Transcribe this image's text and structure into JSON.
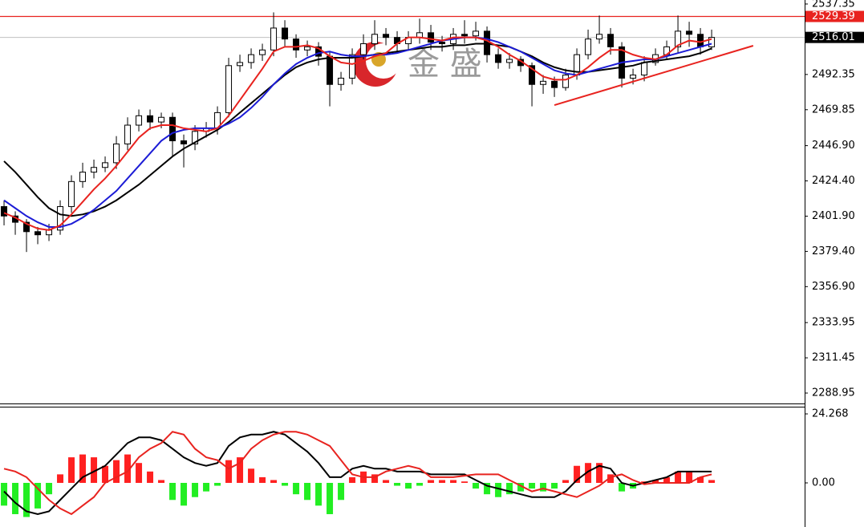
{
  "chart_data": [
    {
      "type": "candlestick",
      "xlim": [
        -0.36,
        71.28
      ],
      "ylim": [
        2282.3,
        2539.9
      ],
      "yticks": [
        {
          "value": 2537.35,
          "label": "2537.35"
        },
        {
          "value": 2492.35,
          "label": "2492.35"
        },
        {
          "value": 2469.85,
          "label": "2469.85"
        },
        {
          "value": 2446.9,
          "label": "2446.90"
        },
        {
          "value": 2424.4,
          "label": "2424.40"
        },
        {
          "value": 2401.9,
          "label": "2401.90"
        },
        {
          "value": 2379.4,
          "label": "2379.40"
        },
        {
          "value": 2356.9,
          "label": "2356.90"
        },
        {
          "value": 2333.95,
          "label": "2333.95"
        },
        {
          "value": 2311.45,
          "label": "2311.45"
        },
        {
          "value": 2288.95,
          "label": "2288.95"
        }
      ],
      "open": [
        2408,
        2402,
        2398,
        2392,
        2390,
        2393,
        2408,
        2424,
        2430,
        2433,
        2436,
        2448,
        2460,
        2466,
        2462,
        2465,
        2450,
        2448,
        2456,
        2458,
        2468,
        2498,
        2500,
        2505,
        2508,
        2522,
        2515,
        2508,
        2510,
        2504,
        2486,
        2490,
        2505,
        2512,
        2518,
        2516,
        2512,
        2516,
        2519,
        2513,
        2512,
        2518,
        2517,
        2520,
        2505,
        2500,
        2502,
        2498,
        2486,
        2488,
        2484,
        2492,
        2505,
        2515,
        2518,
        2510,
        2490,
        2492,
        2500,
        2505,
        2510,
        2520,
        2518,
        2510
      ],
      "high": [
        2412,
        2405,
        2400,
        2395,
        2397,
        2412,
        2428,
        2436,
        2438,
        2440,
        2453,
        2465,
        2470,
        2470,
        2468,
        2468,
        2454,
        2460,
        2462,
        2472,
        2503,
        2505,
        2509,
        2512,
        2532,
        2527,
        2518,
        2514,
        2513,
        2507,
        2494,
        2509,
        2518,
        2527,
        2522,
        2520,
        2520,
        2528,
        2524,
        2517,
        2522,
        2527,
        2526,
        2523,
        2509,
        2506,
        2504,
        2500,
        2492,
        2491,
        2496,
        2509,
        2521,
        2530,
        2522,
        2513,
        2496,
        2504,
        2509,
        2514,
        2530,
        2526,
        2522,
        2521
      ],
      "low": [
        2396,
        2390,
        2379,
        2384,
        2386,
        2390,
        2404,
        2420,
        2426,
        2430,
        2432,
        2444,
        2456,
        2457,
        2458,
        2440,
        2433,
        2444,
        2452,
        2454,
        2465,
        2494,
        2496,
        2501,
        2504,
        2510,
        2503,
        2504,
        2498,
        2472,
        2482,
        2486,
        2502,
        2508,
        2511,
        2506,
        2508,
        2512,
        2508,
        2507,
        2508,
        2512,
        2514,
        2500,
        2496,
        2496,
        2494,
        2472,
        2480,
        2478,
        2482,
        2489,
        2502,
        2512,
        2505,
        2484,
        2486,
        2488,
        2498,
        2502,
        2506,
        2510,
        2505,
        2508
      ],
      "close": [
        2402,
        2398,
        2392,
        2390,
        2393,
        2408,
        2424,
        2430,
        2433,
        2436,
        2448,
        2460,
        2466,
        2462,
        2465,
        2450,
        2448,
        2456,
        2458,
        2468,
        2498,
        2500,
        2505,
        2508,
        2522,
        2515,
        2508,
        2510,
        2504,
        2486,
        2490,
        2505,
        2512,
        2518,
        2516,
        2512,
        2516,
        2519,
        2513,
        2512,
        2518,
        2517,
        2520,
        2505,
        2500,
        2502,
        2498,
        2486,
        2488,
        2484,
        2492,
        2505,
        2515,
        2518,
        2510,
        2490,
        2492,
        2500,
        2505,
        2510,
        2520,
        2518,
        2510,
        2516.01
      ],
      "ma": [
        {
          "color": "#000000",
          "values": [
            2437,
            2430,
            2422,
            2414,
            2407,
            2403,
            2402,
            2403,
            2405,
            2408,
            2412,
            2417,
            2422,
            2428,
            2434,
            2440,
            2445,
            2449,
            2453,
            2457,
            2462,
            2468,
            2474,
            2480,
            2486,
            2492,
            2497,
            2500,
            2502,
            2503,
            2503,
            2503,
            2504,
            2505,
            2506,
            2507,
            2508,
            2509,
            2510,
            2510,
            2511,
            2511,
            2512,
            2512,
            2511,
            2510,
            2507,
            2504,
            2500,
            2497,
            2495,
            2494,
            2494,
            2495,
            2496,
            2497,
            2498,
            2500,
            2501,
            2502,
            2503,
            2504,
            2506,
            2509
          ]
        },
        {
          "color": "#1c1cd6",
          "values": [
            2412,
            2407,
            2402,
            2398,
            2395,
            2395,
            2397,
            2401,
            2406,
            2412,
            2418,
            2426,
            2434,
            2442,
            2450,
            2455,
            2457,
            2458,
            2458,
            2458,
            2461,
            2465,
            2471,
            2478,
            2486,
            2493,
            2499,
            2503,
            2506,
            2507,
            2505,
            2504,
            2504,
            2505,
            2505,
            2506,
            2508,
            2510,
            2512,
            2514,
            2515,
            2516,
            2516,
            2515,
            2513,
            2510,
            2507,
            2503,
            2499,
            2495,
            2493,
            2492,
            2494,
            2496,
            2498,
            2500,
            2501,
            2502,
            2502,
            2504,
            2506,
            2508,
            2510,
            2512
          ]
        },
        {
          "color": "#e8231f",
          "values": [
            2404,
            2401,
            2397,
            2394,
            2393,
            2396,
            2403,
            2411,
            2419,
            2426,
            2434,
            2443,
            2452,
            2458,
            2460,
            2460,
            2458,
            2457,
            2456,
            2458,
            2466,
            2476,
            2486,
            2496,
            2507,
            2510,
            2510,
            2511,
            2509,
            2504,
            2500,
            2499,
            2501,
            2504,
            2506,
            2512,
            2516,
            2516,
            2515,
            2514,
            2516,
            2516,
            2516,
            2514,
            2510,
            2505,
            2501,
            2496,
            2491,
            2489,
            2489,
            2492,
            2497,
            2503,
            2508,
            2508,
            2505,
            2503,
            2502,
            2505,
            2511,
            2514,
            2513,
            2515
          ]
        }
      ],
      "hline": {
        "value": 2529.39,
        "color": "#e8231f"
      },
      "trendline": {
        "x": [
          49,
          66.7
        ],
        "y": [
          2472.8,
          2510.7
        ],
        "color": "#e8231f"
      },
      "watermark": "金 盛"
    },
    {
      "type": "macd",
      "ylim": [
        -15.52,
        26.81
      ],
      "yticks": [
        24.268,
        {
          "value": 0,
          "label": "0.00"
        }
      ],
      "up_color": "#ff2020",
      "down_color": "#22ee22",
      "histogram": [
        -8,
        -11,
        -12,
        -9,
        -4,
        3,
        9,
        10,
        9,
        6,
        8,
        10,
        7,
        4,
        1,
        -6,
        -8,
        -5,
        -3,
        -1,
        8,
        9,
        5,
        2,
        1,
        -1,
        -4,
        -6,
        -8,
        -11,
        -6,
        2,
        4,
        3,
        1,
        -1,
        -2,
        -1,
        1,
        1,
        1,
        0.5,
        -2,
        -4,
        -5,
        -4,
        -3,
        -2,
        -3,
        -2,
        1,
        6,
        7,
        7,
        3,
        -3,
        -2,
        0.5,
        1,
        2,
        4,
        4,
        2,
        1
      ],
      "lines": [
        {
          "color": "#000000",
          "values": [
            -3,
            -7,
            -10,
            -11,
            -10,
            -6,
            -2,
            2,
            4,
            6,
            10,
            14,
            16,
            16,
            15,
            12,
            9,
            7,
            6,
            7,
            13,
            16,
            17,
            17,
            18,
            17,
            14,
            11,
            7,
            2,
            2,
            5,
            6,
            5,
            5,
            4,
            4,
            4,
            3,
            3,
            3,
            3,
            1,
            -1,
            -2,
            -3,
            -4,
            -5,
            -5,
            -5,
            -3,
            1,
            4,
            6,
            5,
            0,
            -1,
            0,
            1,
            2,
            4,
            4,
            4,
            4
          ]
        },
        {
          "color": "#e8231f",
          "values": [
            5,
            4,
            2,
            -2,
            -6,
            -9,
            -11,
            -8,
            -5,
            0,
            2,
            4,
            9,
            12,
            14,
            18,
            17,
            12,
            9,
            8,
            5,
            7,
            12,
            15,
            17,
            18,
            18,
            17,
            15,
            13,
            8,
            3,
            2,
            2,
            4,
            5,
            6,
            5,
            2,
            2,
            2,
            2.5,
            3,
            3,
            3,
            1,
            -1,
            -3,
            -2,
            -3,
            -4,
            -5,
            -3,
            -1,
            2,
            3,
            1,
            -0.5,
            0,
            0,
            0,
            0,
            2,
            3
          ]
        }
      ]
    }
  ]
}
